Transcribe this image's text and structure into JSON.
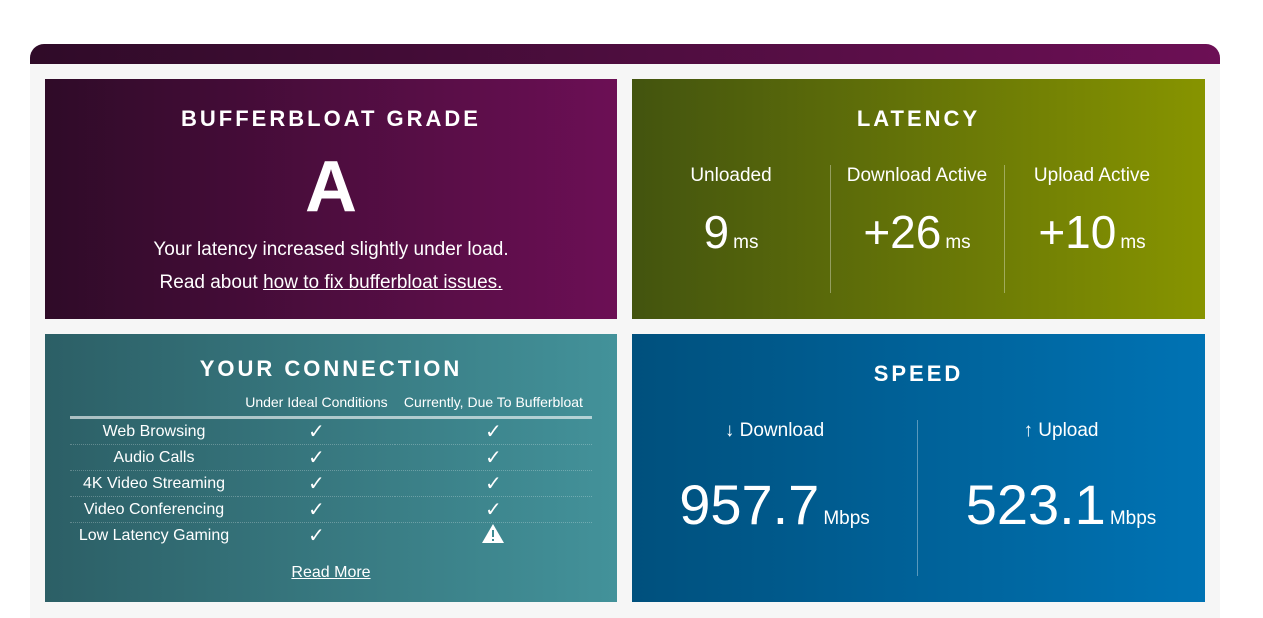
{
  "grade": {
    "title": "BUFFERBLOAT GRADE",
    "grade": "A",
    "summary": "Your latency increased slightly under load.",
    "read_prefix": "Read about",
    "link": "how to fix bufferbloat issues."
  },
  "latency": {
    "title": "LATENCY",
    "cols": [
      {
        "label": "Unloaded",
        "value": "9",
        "unit": "ms"
      },
      {
        "label": "Download Active",
        "value": "+26",
        "unit": "ms"
      },
      {
        "label": "Upload Active",
        "value": "+10",
        "unit": "ms"
      }
    ]
  },
  "connection": {
    "title": "YOUR CONNECTION",
    "headers": [
      "",
      "Under Ideal Conditions",
      "Currently, Due To Bufferbloat"
    ],
    "rows": [
      {
        "name": "Web Browsing",
        "ideal": "check",
        "current": "check"
      },
      {
        "name": "Audio Calls",
        "ideal": "check",
        "current": "check"
      },
      {
        "name": "4K Video Streaming",
        "ideal": "check",
        "current": "check"
      },
      {
        "name": "Video Conferencing",
        "ideal": "check",
        "current": "check"
      },
      {
        "name": "Low Latency Gaming",
        "ideal": "check",
        "current": "warning"
      }
    ],
    "read_more": "Read More"
  },
  "speed": {
    "title": "SPEED",
    "download": {
      "label": "↓ Download",
      "value": "957.7",
      "unit": "Mbps"
    },
    "upload": {
      "label": "↑ Upload",
      "value": "523.1",
      "unit": "Mbps"
    }
  }
}
